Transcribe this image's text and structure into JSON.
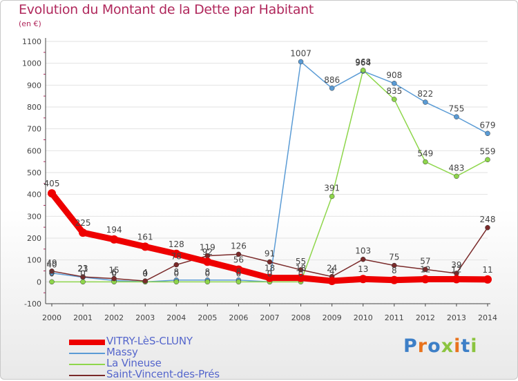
{
  "title": "Evolution du Montant de la Dette par Habitant",
  "subtitle": "(en €)",
  "brand": "Proxiti",
  "colors": {
    "title": "#b0285c",
    "axis": "#444444",
    "grid": "#e2e2e2",
    "label": "#444444",
    "legend_text": "#5566cc"
  },
  "chart_data": {
    "type": "line",
    "title": "Evolution du Montant de la Dette par Habitant",
    "ylabel": "(en €)",
    "xlabel": "",
    "ylim": [
      -100,
      1100
    ],
    "yticks": [
      -100,
      0,
      100,
      200,
      300,
      400,
      500,
      600,
      700,
      800,
      900,
      1000,
      1100
    ],
    "categories": [
      "2000",
      "2001",
      "2002",
      "2003",
      "2004",
      "2005",
      "2006",
      "2007",
      "2008",
      "2009",
      "2010",
      "2011",
      "2012",
      "2013",
      "2014"
    ],
    "legend_position": "bottom-left",
    "series": [
      {
        "name": "VITRY-LèS-CLUNY",
        "color": "#ee0000",
        "bold": true,
        "values": [
          405,
          225,
          194,
          161,
          128,
          92,
          56,
          18,
          18,
          4,
          13,
          8,
          12,
          12,
          11
        ]
      },
      {
        "name": "Massy",
        "color": "#5a9bd5",
        "bold": false,
        "values": [
          40,
          21,
          6,
          0,
          8,
          8,
          8,
          0,
          1007,
          886,
          964,
          908,
          822,
          755,
          679
        ]
      },
      {
        "name": "La Vineuse",
        "color": "#8ed64b",
        "bold": false,
        "values": [
          0,
          0,
          0,
          0,
          0,
          0,
          0,
          0,
          0,
          391,
          968,
          835,
          549,
          483,
          559
        ]
      },
      {
        "name": "Saint-Vincent-des-Prés",
        "color": "#7a2a2a",
        "bold": false,
        "values": [
          49,
          23,
          15,
          4,
          78,
          119,
          126,
          91,
          55,
          24,
          103,
          75,
          57,
          39,
          248
        ]
      }
    ]
  }
}
